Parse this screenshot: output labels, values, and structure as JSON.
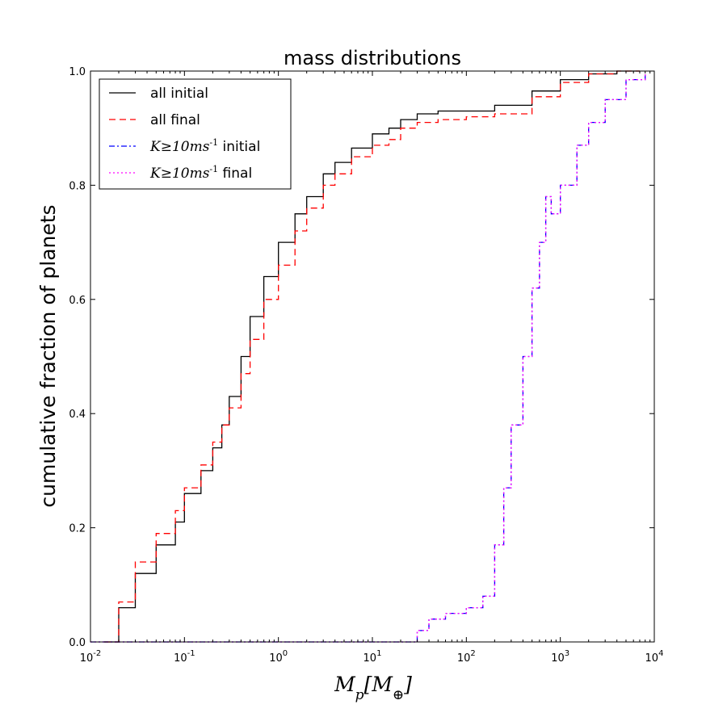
{
  "chart_data": {
    "type": "line",
    "title": "mass distributions",
    "xlabel": "M_p[M_⊕]",
    "ylabel": "cumulative fraction of planets",
    "xscale": "log",
    "xlim": [
      0.01,
      10000
    ],
    "ylim": [
      0.0,
      1.0
    ],
    "x_ticks": [
      {
        "value": 0.01,
        "base": "10",
        "exp": "-2"
      },
      {
        "value": 0.1,
        "base": "10",
        "exp": "-1"
      },
      {
        "value": 1,
        "base": "10",
        "exp": "0"
      },
      {
        "value": 10,
        "base": "10",
        "exp": "1"
      },
      {
        "value": 100,
        "base": "10",
        "exp": "2"
      },
      {
        "value": 1000,
        "base": "10",
        "exp": "3"
      },
      {
        "value": 10000,
        "base": "10",
        "exp": "4"
      }
    ],
    "y_ticks": [
      "0.0",
      "0.2",
      "0.4",
      "0.6",
      "0.8",
      "1.0"
    ],
    "legend_position": "top-left",
    "grid": false,
    "series": [
      {
        "name": "all initial",
        "color": "#000000",
        "dash": "solid",
        "x": [
          0.014,
          0.02,
          0.03,
          0.05,
          0.08,
          0.1,
          0.15,
          0.2,
          0.25,
          0.3,
          0.4,
          0.5,
          0.7,
          1.0,
          1.5,
          2.0,
          3.0,
          4.0,
          6.0,
          10,
          15,
          20,
          30,
          50,
          100,
          200,
          500,
          1000,
          2000,
          4000,
          7000
        ],
        "y": [
          0.0,
          0.06,
          0.12,
          0.17,
          0.21,
          0.26,
          0.3,
          0.34,
          0.38,
          0.43,
          0.5,
          0.57,
          0.64,
          0.7,
          0.75,
          0.78,
          0.82,
          0.84,
          0.865,
          0.89,
          0.9,
          0.915,
          0.925,
          0.93,
          0.93,
          0.94,
          0.965,
          0.985,
          0.995,
          1.0,
          1.0
        ]
      },
      {
        "name": "all final",
        "color": "#ff0000",
        "dash": "dashed",
        "x": [
          0.014,
          0.02,
          0.03,
          0.05,
          0.08,
          0.1,
          0.15,
          0.2,
          0.25,
          0.3,
          0.4,
          0.5,
          0.7,
          1.0,
          1.5,
          2.0,
          3.0,
          4.0,
          6.0,
          10,
          15,
          20,
          30,
          50,
          100,
          200,
          500,
          1000,
          2000,
          4000,
          7000
        ],
        "y": [
          0.0,
          0.07,
          0.14,
          0.19,
          0.23,
          0.27,
          0.31,
          0.35,
          0.38,
          0.41,
          0.47,
          0.53,
          0.6,
          0.66,
          0.72,
          0.76,
          0.8,
          0.82,
          0.85,
          0.87,
          0.88,
          0.9,
          0.91,
          0.915,
          0.92,
          0.925,
          0.955,
          0.98,
          0.995,
          1.0,
          1.0
        ]
      },
      {
        "name": "K≥10ms^-1 initial",
        "color": "#0000ff",
        "dash": "dashdot",
        "x": [
          0.01,
          30,
          30,
          40,
          60,
          100,
          150,
          200,
          250,
          300,
          400,
          500,
          600,
          700,
          800,
          1000,
          1500,
          2000,
          3000,
          5000,
          8000
        ],
        "y": [
          0.0,
          0.0,
          0.02,
          0.04,
          0.05,
          0.06,
          0.08,
          0.17,
          0.27,
          0.38,
          0.5,
          0.62,
          0.7,
          0.78,
          0.75,
          0.8,
          0.87,
          0.91,
          0.95,
          0.985,
          0.995
        ]
      },
      {
        "name": "K≥10ms^-1 final",
        "color": "#ff00ff",
        "dash": "dotted",
        "x": [
          0.01,
          30,
          30,
          40,
          60,
          100,
          150,
          200,
          250,
          300,
          400,
          500,
          600,
          700,
          800,
          1000,
          1500,
          2000,
          3000,
          5000,
          8000
        ],
        "y": [
          0.0,
          0.0,
          0.02,
          0.04,
          0.05,
          0.06,
          0.08,
          0.17,
          0.27,
          0.38,
          0.5,
          0.62,
          0.7,
          0.78,
          0.75,
          0.8,
          0.87,
          0.91,
          0.95,
          0.985,
          0.995
        ]
      }
    ]
  }
}
